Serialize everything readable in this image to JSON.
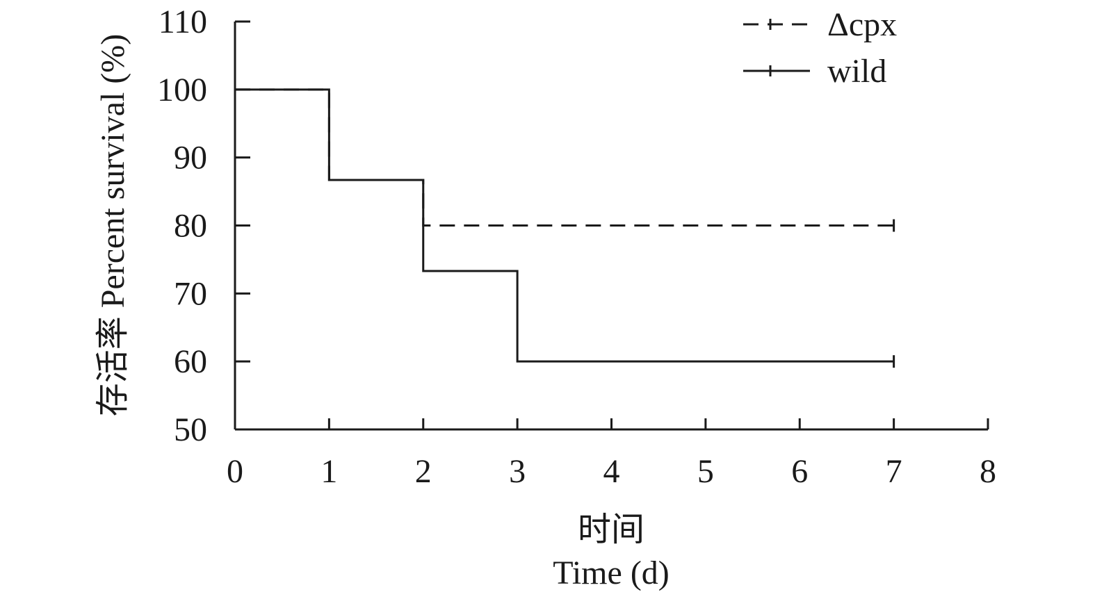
{
  "chart_data": {
    "type": "line",
    "step": true,
    "ylabel": "存活率 Percent survival (%)",
    "xlabel_cn": "时间",
    "xlabel": "Time (d)",
    "xlim": [
      0,
      8
    ],
    "ylim": [
      50,
      110
    ],
    "xticks": [
      0,
      1,
      2,
      3,
      4,
      5,
      6,
      7,
      8
    ],
    "yticks": [
      50,
      60,
      70,
      80,
      90,
      100,
      110
    ],
    "grid": false,
    "legend": "top-right",
    "series": [
      {
        "name": "Δcpx",
        "style": "dashed",
        "color": "#1a1a1a",
        "x": [
          0,
          1,
          2,
          7
        ],
        "y": [
          100,
          86.7,
          80,
          80
        ]
      },
      {
        "name": "wild",
        "style": "solid",
        "color": "#1a1a1a",
        "x": [
          0,
          1,
          2,
          3,
          7
        ],
        "y": [
          100,
          86.7,
          73.3,
          60,
          60
        ]
      }
    ]
  }
}
